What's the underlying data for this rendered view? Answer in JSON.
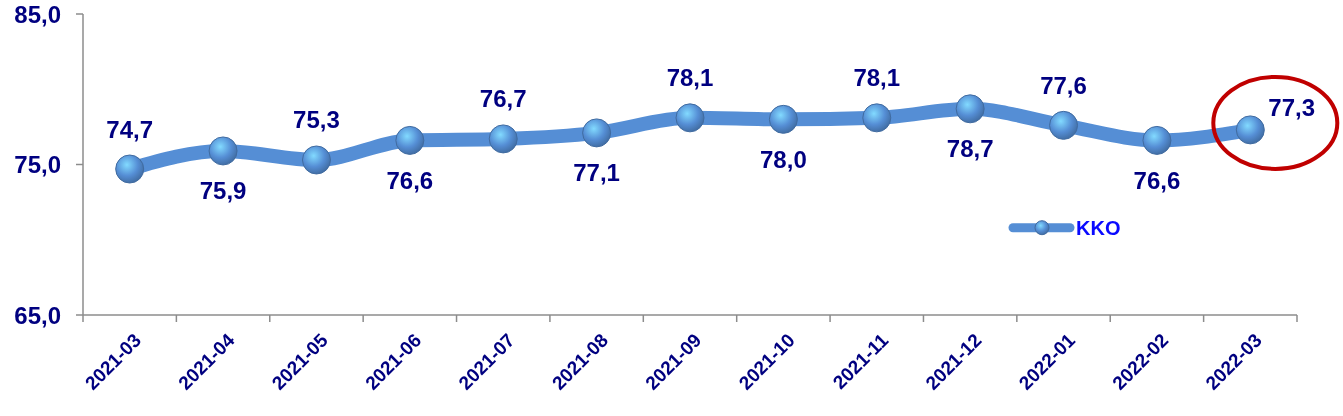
{
  "chart_data": {
    "type": "line",
    "categories": [
      "2021-03",
      "2021-04",
      "2021-05",
      "2021-06",
      "2021-07",
      "2021-08",
      "2021-09",
      "2021-10",
      "2021-11",
      "2021-12",
      "2022-01",
      "2022-02",
      "2022-03"
    ],
    "series": [
      {
        "name": "KKO",
        "color": "#558ed5",
        "values": [
          74.7,
          75.9,
          75.3,
          76.6,
          76.7,
          77.1,
          78.1,
          78.0,
          78.1,
          78.7,
          77.6,
          76.6,
          77.3
        ],
        "value_labels": [
          "74,7",
          "75,9",
          "75,3",
          "76,6",
          "76,7",
          "77,1",
          "78,1",
          "78,0",
          "78,1",
          "78,7",
          "77,6",
          "76,6",
          "77,3"
        ]
      }
    ],
    "ylim": [
      65,
      85
    ],
    "yticks": [
      {
        "value": 65,
        "label": "65,0"
      },
      {
        "value": 75,
        "label": "75,0"
      },
      {
        "value": 85,
        "label": "85,0"
      }
    ],
    "legend": "right",
    "marker": "circle",
    "line_style": "solid"
  }
}
